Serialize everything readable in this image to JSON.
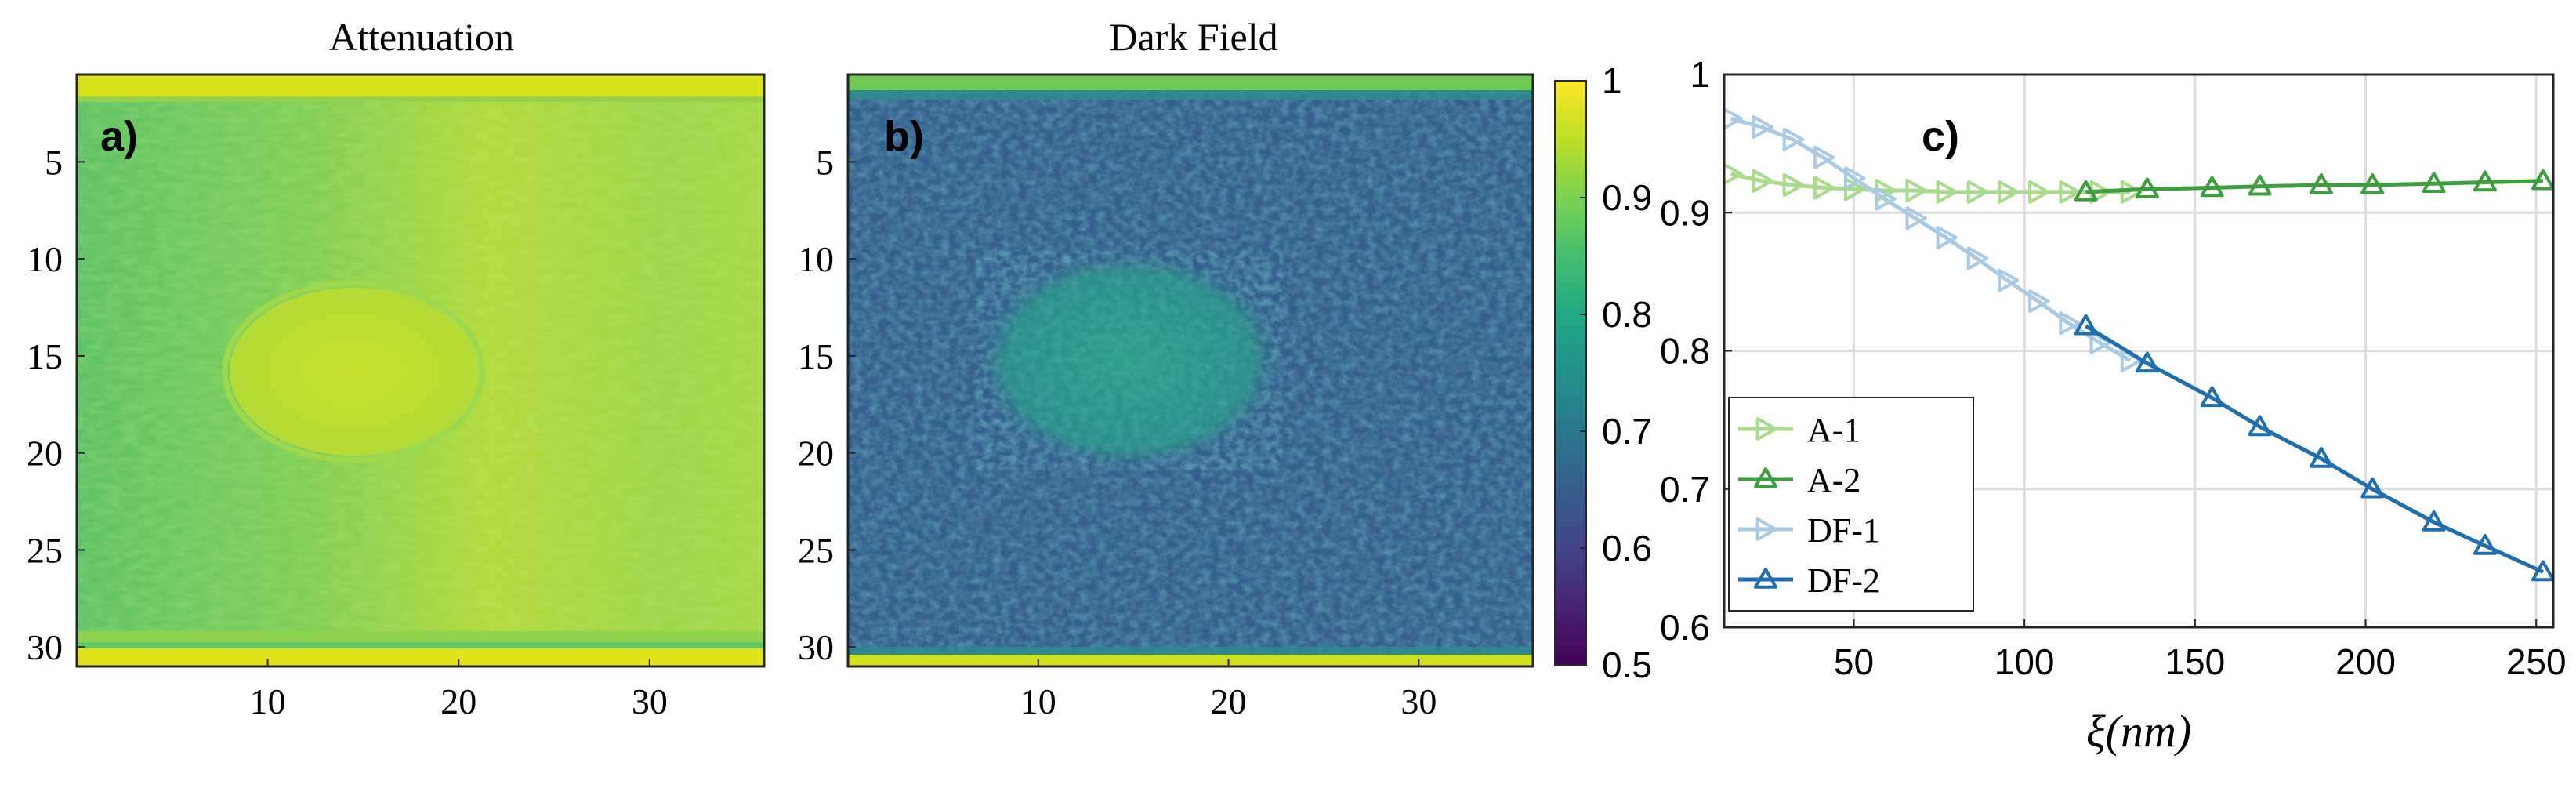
{
  "panels": [
    {
      "title": "Attenuation",
      "label": "a)",
      "xticks": [
        10,
        20,
        30
      ],
      "yticks": [
        5,
        10,
        15,
        20,
        25,
        30
      ],
      "xlim": [
        0,
        36
      ],
      "ylim": [
        0.5,
        31
      ],
      "colormap": "viridis"
    },
    {
      "title": "Dark Field",
      "label": "b)",
      "xticks": [
        10,
        20,
        30
      ],
      "yticks": [
        5,
        10,
        15,
        20,
        25,
        30
      ],
      "xlim": [
        0,
        36
      ],
      "ylim": [
        0.5,
        31
      ],
      "colormap": "viridis"
    }
  ],
  "colorbar": {
    "range": [
      0.5,
      1
    ],
    "ticks": [
      "0.5",
      "0.6",
      "0.7",
      "0.8",
      "0.9",
      "1"
    ]
  },
  "chart_data": {
    "type": "line",
    "label": "c)",
    "xlabel": "ξ(nm)",
    "ylabel": "",
    "xlim": [
      12,
      255
    ],
    "ylim": [
      0.6,
      1.0
    ],
    "xticks": [
      50,
      100,
      150,
      200,
      250
    ],
    "yticks": [
      0.6,
      0.7,
      0.8,
      0.9,
      1.0
    ],
    "ytick_labels": [
      "0.6",
      "0.7",
      "0.8",
      "0.9",
      "1"
    ],
    "grid": true,
    "legend_position": "bottom-left",
    "series": [
      {
        "name": "A-1",
        "color": "#a8dc8c",
        "marker": "triangle-right",
        "x": [
          14,
          23,
          32,
          41,
          50,
          59,
          68,
          77,
          86,
          95,
          104,
          113,
          122,
          131
        ],
        "y": [
          0.928,
          0.923,
          0.92,
          0.918,
          0.917,
          0.916,
          0.916,
          0.915,
          0.915,
          0.915,
          0.915,
          0.915,
          0.915,
          0.915
        ]
      },
      {
        "name": "A-2",
        "color": "#3d9e3d",
        "marker": "triangle-up",
        "x": [
          118,
          136,
          155,
          169,
          187,
          202,
          220,
          235,
          252
        ],
        "y": [
          0.915,
          0.917,
          0.918,
          0.919,
          0.92,
          0.92,
          0.921,
          0.922,
          0.923
        ]
      },
      {
        "name": "DF-1",
        "color": "#a9cae4",
        "marker": "triangle-right",
        "x": [
          14,
          23,
          32,
          41,
          50,
          59,
          68,
          77,
          86,
          95,
          104,
          113,
          122,
          131
        ],
        "y": [
          0.968,
          0.962,
          0.953,
          0.94,
          0.925,
          0.91,
          0.896,
          0.882,
          0.867,
          0.851,
          0.836,
          0.82,
          0.806,
          0.793
        ]
      },
      {
        "name": "DF-2",
        "color": "#1f6fb0",
        "marker": "triangle-up",
        "x": [
          118,
          136,
          155,
          169,
          187,
          202,
          220,
          235,
          252
        ],
        "y": [
          0.818,
          0.791,
          0.766,
          0.745,
          0.722,
          0.7,
          0.676,
          0.659,
          0.64
        ]
      }
    ]
  }
}
